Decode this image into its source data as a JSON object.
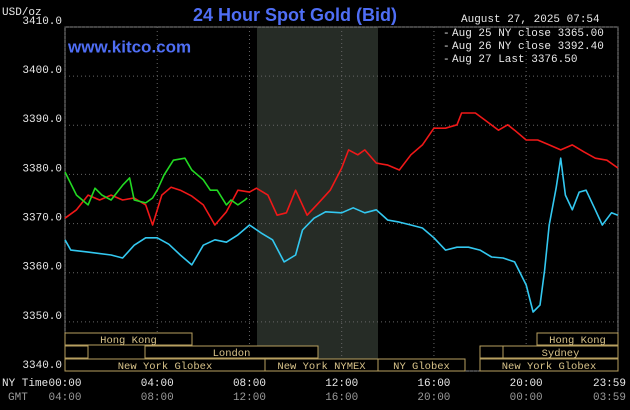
{
  "chart_data": {
    "type": "line",
    "title": "24 Hour Spot Gold (Bid)",
    "timestamp": "August 27, 2025 07:54",
    "site": "www.kitco.com",
    "y_label": "USD/oz",
    "x_label": "NY Time",
    "x2_label": "GMT",
    "ylim": [
      3340,
      3410
    ],
    "yticks": [
      {
        "value": 3340,
        "label": "3340.0"
      },
      {
        "value": 3350,
        "label": "3350.0"
      },
      {
        "value": 3360,
        "label": "3360.0"
      },
      {
        "value": 3370,
        "label": "3370.0"
      },
      {
        "value": 3380,
        "label": "3380.0"
      },
      {
        "value": 3390,
        "label": "3390.0"
      },
      {
        "value": 3400,
        "label": "3400.0"
      },
      {
        "value": 3410,
        "label": "3410.0"
      }
    ],
    "xlim": [
      0,
      23.983
    ],
    "xticks": [
      {
        "value": 0,
        "label": "00:00"
      },
      {
        "value": 4,
        "label": "04:00"
      },
      {
        "value": 8,
        "label": "08:00"
      },
      {
        "value": 12,
        "label": "12:00"
      },
      {
        "value": 16,
        "label": "16:00"
      },
      {
        "value": 20,
        "label": "20:00"
      },
      {
        "value": 23.983,
        "label": "23:59"
      }
    ],
    "gmt_tick_labels": [
      "04:00",
      "08:00",
      "12:00",
      "16:00",
      "20:00",
      "00:00",
      "03:59"
    ],
    "grid": true,
    "sessions": [
      "Hong Kong",
      "London",
      "New York Globex",
      "New York NYMEX",
      "NY Globex",
      "Hong Kong",
      "Sydney",
      "New York Globex"
    ],
    "series": [
      {
        "name": "Aug 25 NY close 3365.00",
        "color": "#33c8f0",
        "x": [
          0,
          0.25,
          1,
          2,
          2.5,
          3,
          3.5,
          4,
          4.5,
          5,
          5.5,
          6,
          6.5,
          7,
          7.5,
          8,
          8.5,
          9,
          9.5,
          10,
          10.3,
          10.8,
          11.3,
          12,
          12.5,
          13,
          13.5,
          14,
          14.5,
          15,
          15.5,
          16,
          16.5,
          17,
          17.5,
          18,
          18.5,
          19,
          19.5,
          20,
          20.3,
          20.6,
          20.8,
          21,
          21.3,
          21.5,
          21.7,
          22,
          22.3,
          22.6,
          23,
          23.3,
          23.7,
          23.98
        ],
        "values": [
          3366.7,
          3364.6,
          3364.2,
          3363.6,
          3363.0,
          3365.6,
          3367.1,
          3367.1,
          3365.8,
          3363.6,
          3361.6,
          3365.6,
          3366.7,
          3366.2,
          3367.7,
          3369.7,
          3368.1,
          3366.7,
          3362.2,
          3363.6,
          3368.7,
          3371.1,
          3372.4,
          3372.2,
          3373.2,
          3372.2,
          3372.8,
          3370.7,
          3370.3,
          3369.7,
          3369.1,
          3367.1,
          3364.6,
          3365.2,
          3365.2,
          3364.6,
          3363.2,
          3363.0,
          3362.2,
          3357.5,
          3352.0,
          3353.4,
          3360.5,
          3369.7,
          3377.2,
          3383.3,
          3375.8,
          3372.8,
          3376.4,
          3376.8,
          3372.8,
          3369.7,
          3372.2,
          3371.7
        ]
      },
      {
        "name": "Aug 26 NY close 3392.40",
        "color": "#f01818",
        "x": [
          0,
          0.5,
          1,
          1.5,
          2,
          2.5,
          3,
          3.5,
          3.8,
          4.2,
          4.6,
          5,
          5.5,
          6,
          6.5,
          7,
          7.5,
          8,
          8.3,
          8.8,
          9.2,
          9.6,
          10,
          10.5,
          11,
          11.5,
          12,
          12.3,
          12.7,
          13,
          13.5,
          14,
          14.5,
          15,
          15.5,
          16,
          16.5,
          17,
          17.2,
          17.8,
          18.2,
          18.8,
          19.2,
          19.5,
          20,
          20.5,
          21,
          21.5,
          22,
          22.5,
          23,
          23.5,
          23.98
        ],
        "values": [
          3371.1,
          3372.8,
          3375.8,
          3374.8,
          3375.8,
          3374.8,
          3375.2,
          3373.8,
          3369.7,
          3375.8,
          3377.4,
          3376.8,
          3375.6,
          3373.8,
          3369.7,
          3372.4,
          3376.8,
          3376.4,
          3377.2,
          3375.8,
          3371.7,
          3372.2,
          3376.8,
          3371.7,
          3374.2,
          3376.8,
          3381.3,
          3385.0,
          3384.0,
          3385.0,
          3382.3,
          3381.9,
          3380.9,
          3384.0,
          3386.0,
          3389.4,
          3389.4,
          3390.1,
          3392.5,
          3392.5,
          3391.1,
          3389.0,
          3390.1,
          3389.0,
          3387.0,
          3387.0,
          3386.0,
          3385.0,
          3386.0,
          3384.6,
          3383.3,
          3382.9,
          3381.3
        ]
      },
      {
        "name": "Aug 27 Last 3376.50",
        "color": "#22d822",
        "x": [
          0,
          0.5,
          1,
          1.3,
          1.6,
          2,
          2.5,
          2.8,
          3,
          3.5,
          3.8,
          4,
          4.3,
          4.7,
          5.2,
          5.5,
          6,
          6.3,
          6.6,
          7,
          7.2,
          7.5,
          7.8,
          7.9
        ],
        "values": [
          3380.5,
          3375.8,
          3373.8,
          3377.2,
          3375.8,
          3374.8,
          3377.8,
          3379.3,
          3374.8,
          3374.2,
          3375.2,
          3376.8,
          3379.9,
          3382.9,
          3383.3,
          3380.9,
          3378.9,
          3376.8,
          3376.8,
          3373.8,
          3374.8,
          3373.8,
          3374.8,
          3375.2
        ]
      }
    ]
  }
}
